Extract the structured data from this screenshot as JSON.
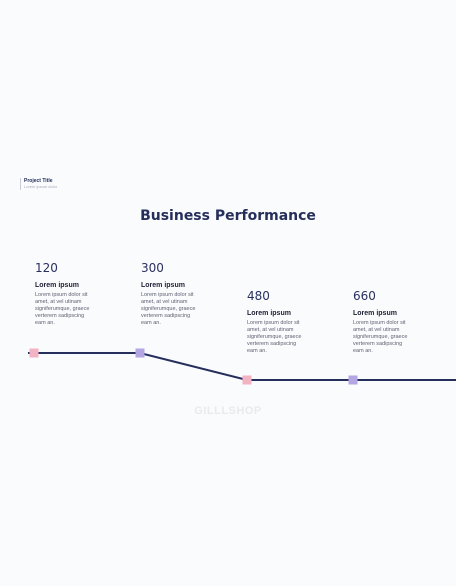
{
  "header": {
    "project_title": "Project Title",
    "project_subtitle": "Lorem ipsum dolor"
  },
  "title": "Business Performance",
  "watermark": "GILLLSHOP",
  "colors": {
    "line": "#262f5c",
    "marker_pink": "#f2b3c2",
    "marker_purple": "#b3a6e3"
  },
  "columns": [
    {
      "value": "120",
      "heading": "Lorem ipsum",
      "body": [
        "Lorem ipsum dolor sit",
        "amet, at vel utinam",
        "signiferumque, graece",
        "verterem sadipscing",
        "eam an."
      ]
    },
    {
      "value": "300",
      "heading": "Lorem ipsum",
      "body": [
        "Lorem ipsum dolor sit",
        "amet, at vel utinam",
        "signiferumque, graece",
        "verterem sadipscing",
        "eam an."
      ]
    },
    {
      "value": "480",
      "heading": "Lorem ipsum",
      "body": [
        "Lorem ipsum dolor sit",
        "amet, at vel utinam",
        "signiferumque, graece",
        "verterem sadipscing",
        "eam an."
      ]
    },
    {
      "value": "660",
      "heading": "Lorem ipsum",
      "body": [
        "Lorem ipsum dolor sit",
        "amet, at vel utinam",
        "signiferumque, graece",
        "verterem sadipscing",
        "eam an."
      ]
    }
  ],
  "markers": [
    {
      "level": "high",
      "color": "pink"
    },
    {
      "level": "high",
      "color": "purple"
    },
    {
      "level": "low",
      "color": "pink"
    },
    {
      "level": "low",
      "color": "purple"
    }
  ]
}
